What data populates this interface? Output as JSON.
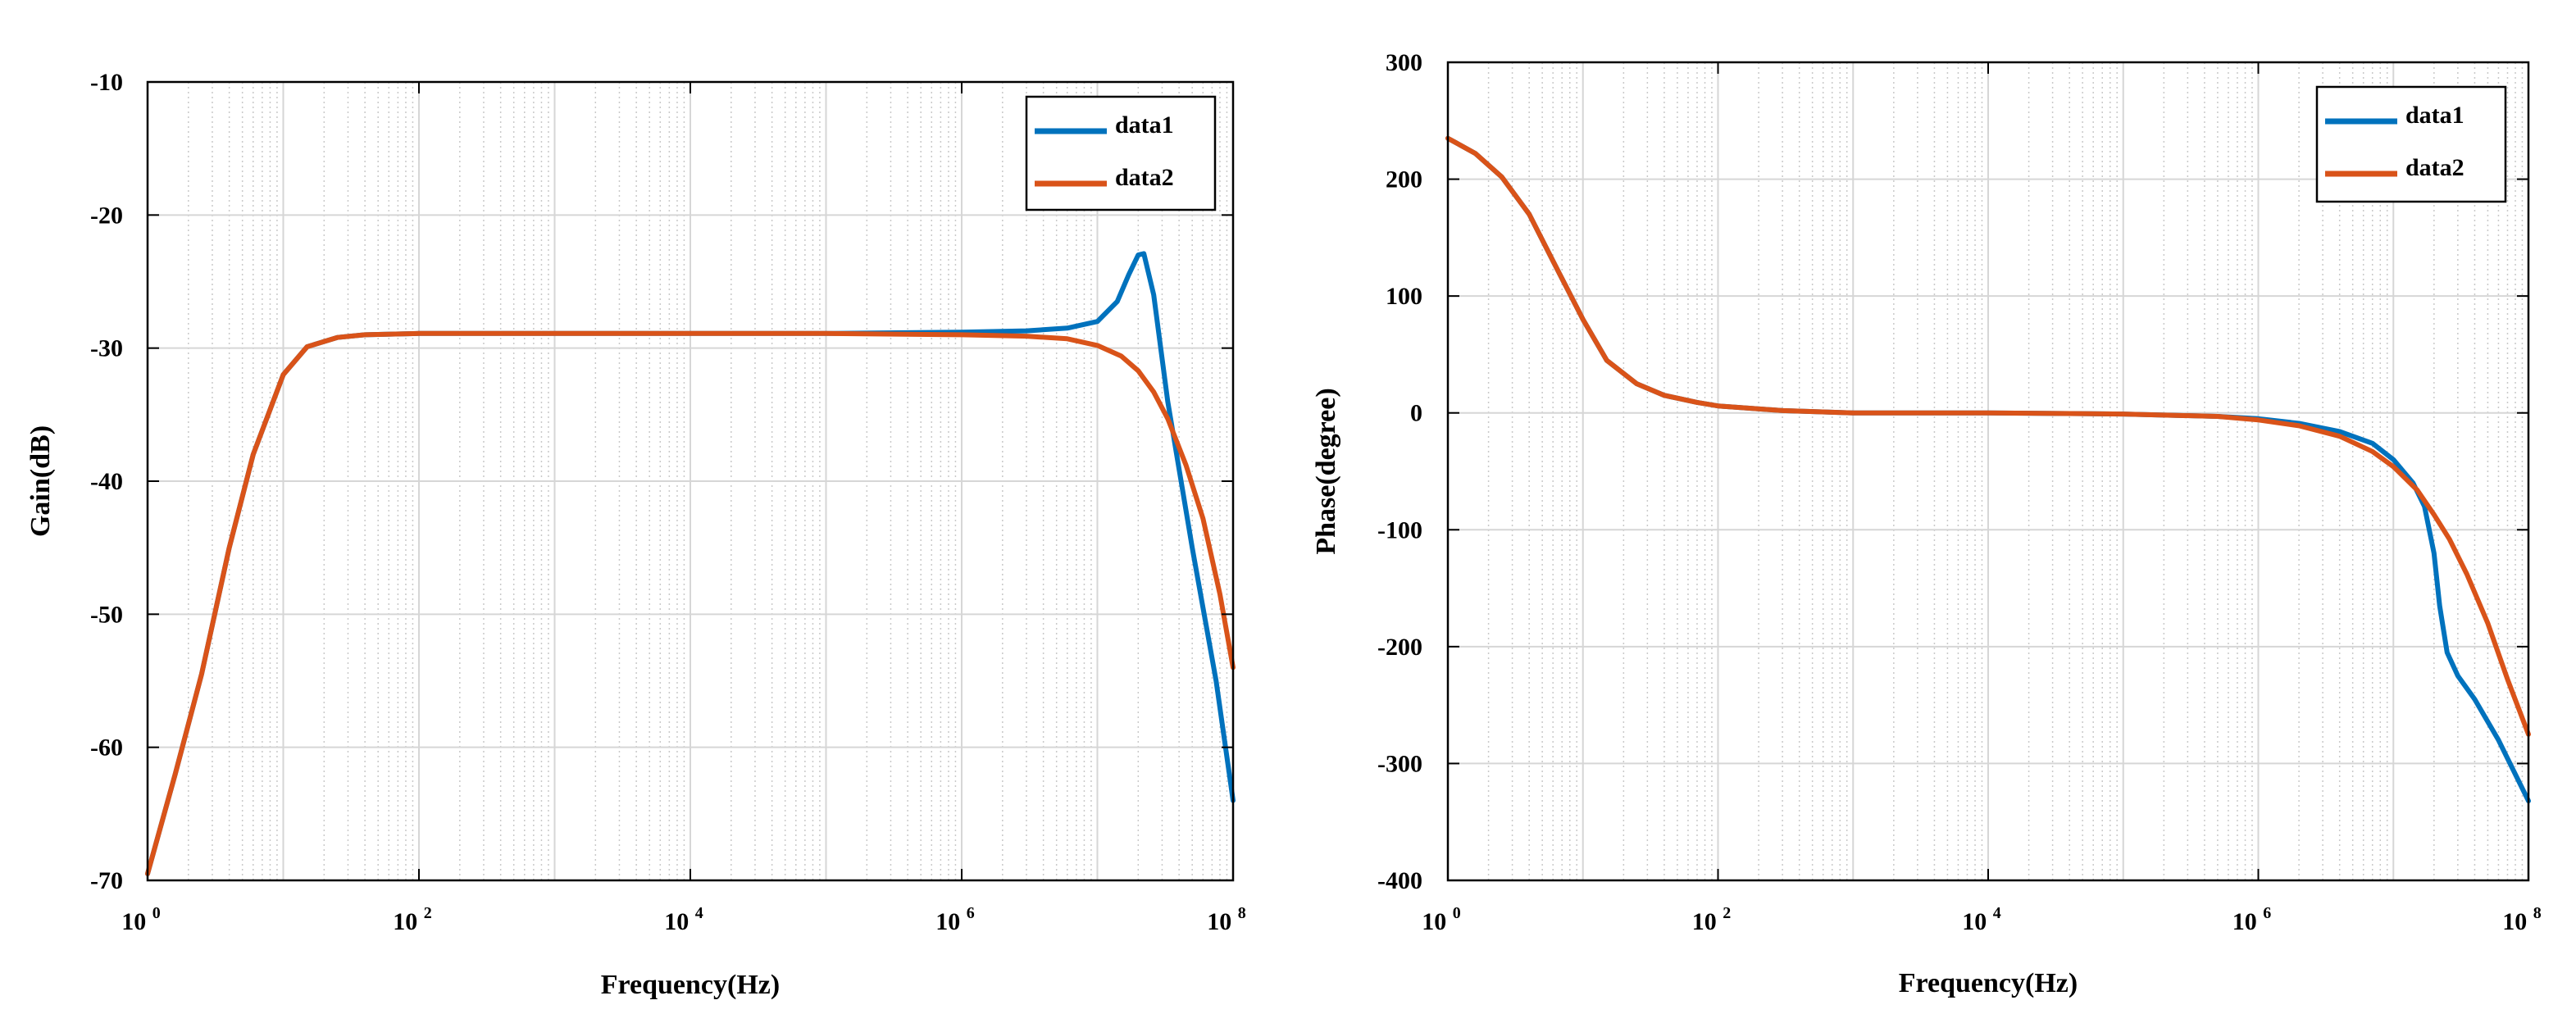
{
  "chart_data": [
    {
      "type": "line",
      "xscale": "log",
      "xlim": [
        1,
        100000000
      ],
      "ylim": [
        -70,
        -10
      ],
      "yticks": [
        -10,
        -20,
        -30,
        -40,
        -50,
        -60,
        -70
      ],
      "ytick_labels": [
        "-10",
        "-20",
        "-30",
        "-40",
        "-50",
        "-60",
        "-70"
      ],
      "xticks": [
        {
          "base": "10",
          "exp": "0",
          "value": 1
        },
        {
          "base": "10",
          "exp": "2",
          "value": 100
        },
        {
          "base": "10",
          "exp": "4",
          "value": 10000
        },
        {
          "base": "10",
          "exp": "6",
          "value": 1000000
        },
        {
          "base": "10",
          "exp": "8",
          "value": 100000000
        }
      ],
      "xlabel": "Frequency(Hz)",
      "ylabel": "Gain(dB)",
      "grid": true,
      "legend_position": "top-right",
      "series": [
        {
          "name": "data1",
          "color": "#0072BD",
          "x": [
            1,
            1.6,
            2.5,
            4,
            6,
            10,
            15,
            25,
            40,
            100,
            1000,
            10000,
            100000,
            1000000,
            3000000,
            6000000,
            10000000,
            14000000,
            17000000,
            20000000,
            22000000,
            26000000,
            33000000,
            50000000,
            75000000,
            100000000
          ],
          "y": [
            -69.5,
            -62,
            -54.5,
            -45,
            -38,
            -32,
            -29.9,
            -29.2,
            -29.0,
            -28.9,
            -28.9,
            -28.9,
            -28.9,
            -28.8,
            -28.7,
            -28.5,
            -28,
            -26.5,
            -24.5,
            -23,
            -22.9,
            -26,
            -34,
            -45,
            -55,
            -64
          ]
        },
        {
          "name": "data2",
          "color": "#D95319",
          "x": [
            1,
            1.6,
            2.5,
            4,
            6,
            10,
            15,
            25,
            40,
            100,
            1000,
            10000,
            100000,
            1000000,
            3000000,
            6000000,
            10000000,
            15000000,
            20000000,
            26000000,
            33000000,
            45000000,
            60000000,
            80000000,
            100000000
          ],
          "y": [
            -69.5,
            -62,
            -54.5,
            -45,
            -38,
            -32,
            -29.9,
            -29.2,
            -29.0,
            -28.9,
            -28.9,
            -28.9,
            -28.9,
            -29.0,
            -29.1,
            -29.3,
            -29.8,
            -30.6,
            -31.7,
            -33.3,
            -35.3,
            -38.8,
            -42.8,
            -48.5,
            -54
          ]
        }
      ]
    },
    {
      "type": "line",
      "xscale": "log",
      "xlim": [
        1,
        100000000
      ],
      "ylim": [
        -400,
        300
      ],
      "yticks": [
        300,
        200,
        100,
        0,
        -100,
        -200,
        -300,
        -400
      ],
      "ytick_labels": [
        "300",
        "200",
        "100",
        "0",
        "-100",
        "-200",
        "-300",
        "-400"
      ],
      "xticks": [
        {
          "base": "10",
          "exp": "0",
          "value": 1
        },
        {
          "base": "10",
          "exp": "2",
          "value": 100
        },
        {
          "base": "10",
          "exp": "4",
          "value": 10000
        },
        {
          "base": "10",
          "exp": "6",
          "value": 1000000
        },
        {
          "base": "10",
          "exp": "8",
          "value": 100000000
        }
      ],
      "xlabel": "Frequency(Hz)",
      "ylabel": "Phase(degree)",
      "grid": true,
      "legend_position": "top-right",
      "series": [
        {
          "name": "data1",
          "color": "#0072BD",
          "x": [
            1,
            1.6,
            2.5,
            4,
            6,
            10,
            15,
            25,
            40,
            70,
            100,
            300,
            1000,
            10000,
            100000,
            500000,
            1000000,
            2000000,
            4000000,
            7000000,
            10000000,
            14000000,
            17000000,
            20000000,
            22000000,
            25000000,
            30000000,
            40000000,
            60000000,
            100000000
          ],
          "y": [
            235,
            222,
            202,
            170,
            130,
            80,
            45,
            25,
            15,
            9,
            6,
            2,
            0,
            0,
            -1,
            -3,
            -5,
            -9,
            -16,
            -26,
            -40,
            -60,
            -80,
            -120,
            -165,
            -205,
            -225,
            -245,
            -280,
            -332
          ]
        },
        {
          "name": "data2",
          "color": "#D95319",
          "x": [
            1,
            1.6,
            2.5,
            4,
            6,
            10,
            15,
            25,
            40,
            70,
            100,
            300,
            1000,
            10000,
            100000,
            500000,
            1000000,
            2000000,
            4000000,
            7000000,
            10000000,
            15000000,
            20000000,
            26000000,
            35000000,
            50000000,
            70000000,
            100000000
          ],
          "y": [
            235,
            222,
            202,
            170,
            130,
            80,
            45,
            25,
            15,
            9,
            6,
            2,
            0,
            0,
            -1,
            -3,
            -6,
            -11,
            -20,
            -33,
            -46,
            -66,
            -87,
            -108,
            -138,
            -180,
            -228,
            -275
          ]
        }
      ]
    }
  ]
}
